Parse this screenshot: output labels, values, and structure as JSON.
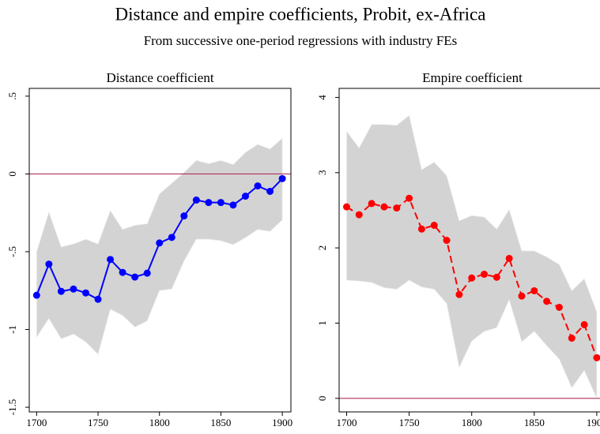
{
  "title": "Distance and empire coefficients, Probit, ex-Africa",
  "subtitle": "From successive one-period regressions with industry FEs",
  "chart_data": [
    {
      "type": "line",
      "title": "Distance coefficient",
      "x": [
        1700,
        1710,
        1720,
        1730,
        1740,
        1750,
        1760,
        1770,
        1780,
        1790,
        1800,
        1810,
        1820,
        1830,
        1840,
        1850,
        1860,
        1870,
        1880,
        1890,
        1900
      ],
      "values": [
        -0.78,
        -0.58,
        -0.755,
        -0.74,
        -0.765,
        -0.806,
        -0.55,
        -0.633,
        -0.663,
        -0.638,
        -0.444,
        -0.408,
        -0.27,
        -0.168,
        -0.184,
        -0.184,
        -0.2,
        -0.143,
        -0.077,
        -0.112,
        -0.03
      ],
      "upper": [
        -0.5,
        -0.245,
        -0.47,
        -0.45,
        -0.42,
        -0.45,
        -0.235,
        -0.357,
        -0.33,
        -0.32,
        -0.128,
        -0.06,
        0.01,
        0.087,
        0.066,
        0.087,
        0.06,
        0.138,
        0.19,
        0.16,
        0.23
      ],
      "lower": [
        -1.05,
        -0.93,
        -1.06,
        -1.03,
        -1.08,
        -1.16,
        -0.87,
        -0.91,
        -0.985,
        -0.945,
        -0.75,
        -0.74,
        -0.56,
        -0.42,
        -0.42,
        -0.43,
        -0.455,
        -0.41,
        -0.357,
        -0.37,
        -0.296
      ],
      "color": "#0000ff",
      "band_color": "#d3d3d3",
      "dashed": false,
      "hline": 0,
      "hline_color": "#b0305c",
      "xlim": [
        1694,
        1907
      ],
      "xticks": [
        1700,
        1750,
        1800,
        1850,
        1900
      ],
      "ylim": [
        -1.53,
        0.55
      ],
      "yticks": [
        {
          "value": 0.5,
          "label": ".5"
        },
        0,
        {
          "value": -0.5,
          "label": "-.5"
        },
        -1,
        -1.5
      ]
    },
    {
      "type": "line",
      "title": "Empire coefficient",
      "x": [
        1700,
        1710,
        1720,
        1730,
        1740,
        1750,
        1760,
        1770,
        1780,
        1790,
        1800,
        1810,
        1820,
        1830,
        1840,
        1850,
        1860,
        1870,
        1880,
        1890,
        1900
      ],
      "values": [
        2.545,
        2.44,
        2.59,
        2.545,
        2.53,
        2.66,
        2.25,
        2.3,
        2.1,
        1.38,
        1.6,
        1.65,
        1.61,
        1.86,
        1.36,
        1.43,
        1.29,
        1.21,
        0.8,
        0.98,
        0.54
      ],
      "upper": [
        3.55,
        3.33,
        3.64,
        3.64,
        3.63,
        3.76,
        3.04,
        3.14,
        2.96,
        2.36,
        2.43,
        2.41,
        2.25,
        2.51,
        1.96,
        1.96,
        1.88,
        1.78,
        1.43,
        1.59,
        1.15
      ],
      "lower": [
        1.57,
        1.56,
        1.54,
        1.47,
        1.45,
        1.57,
        1.48,
        1.45,
        1.26,
        0.41,
        0.76,
        0.89,
        0.94,
        1.31,
        0.75,
        0.89,
        0.7,
        0.52,
        0.14,
        0.37,
        0.0
      ],
      "color": "#ff0000",
      "band_color": "#d3d3d3",
      "dashed": true,
      "hline": 0,
      "hline_color": "#b0305c",
      "xlim": [
        1694,
        1907
      ],
      "xticks": [
        1700,
        1750,
        1800,
        1850,
        1900
      ],
      "ylim": [
        -0.18,
        4.12
      ],
      "yticks": [
        0,
        1,
        2,
        3,
        4
      ]
    }
  ]
}
